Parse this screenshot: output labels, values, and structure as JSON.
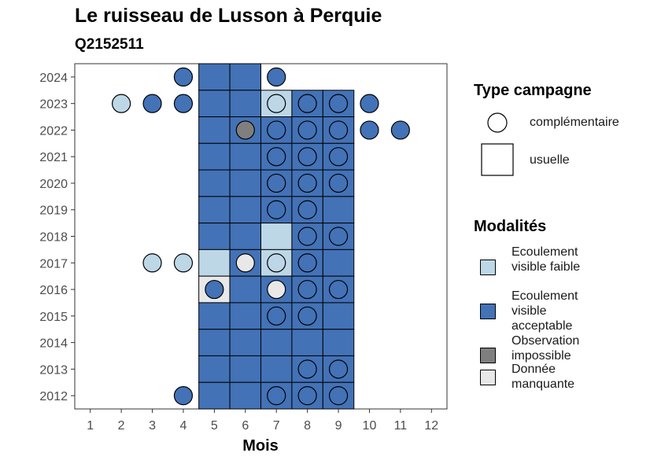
{
  "title": "Le ruisseau de Lusson à Perquie",
  "subtitle": "Q2152511",
  "colors": {
    "ecoulement_faible": "#bdd7e7",
    "ecoulement_acceptable": "#4372b7",
    "observation_impossible": "#7f7f7f",
    "donnee_manquante": "#e8e8e8"
  },
  "legend": {
    "type_title": "Type campagne",
    "type_items": [
      {
        "label": "complémentaire",
        "shape": "circle"
      },
      {
        "label": "usuelle",
        "shape": "square"
      }
    ],
    "modalites_title": "Modalités",
    "modalites_items": [
      {
        "key": "ecoulement_faible",
        "label": "Ecoulement visible faible"
      },
      {
        "key": "ecoulement_acceptable",
        "label": "Ecoulement visible acceptable"
      },
      {
        "key": "observation_impossible",
        "label": "Observation impossible"
      },
      {
        "key": "donnee_manquante",
        "label": "Donnée manquante"
      }
    ]
  },
  "chart_data": {
    "type": "scatter",
    "xlabel": "Mois",
    "ylabel": "",
    "x_ticks": [
      "1",
      "2",
      "3",
      "4",
      "5",
      "6",
      "7",
      "8",
      "9",
      "10",
      "11",
      "12"
    ],
    "y_ticks": [
      "2012",
      "2013",
      "2014",
      "2015",
      "2016",
      "2017",
      "2018",
      "2019",
      "2020",
      "2021",
      "2022",
      "2023",
      "2024"
    ],
    "xlim": [
      0.5,
      12.5
    ],
    "ylim": [
      2011.5,
      2024.5
    ],
    "usuelle": [
      {
        "year": 2024,
        "month": 5,
        "status": "ecoulement_acceptable"
      },
      {
        "year": 2024,
        "month": 6,
        "status": "ecoulement_acceptable"
      },
      {
        "year": 2023,
        "month": 5,
        "status": "ecoulement_acceptable"
      },
      {
        "year": 2023,
        "month": 6,
        "status": "ecoulement_acceptable"
      },
      {
        "year": 2023,
        "month": 7,
        "status": "ecoulement_faible"
      },
      {
        "year": 2023,
        "month": 8,
        "status": "ecoulement_acceptable"
      },
      {
        "year": 2023,
        "month": 9,
        "status": "ecoulement_acceptable"
      },
      {
        "year": 2022,
        "month": 5,
        "status": "ecoulement_acceptable"
      },
      {
        "year": 2022,
        "month": 6,
        "status": "ecoulement_acceptable"
      },
      {
        "year": 2022,
        "month": 7,
        "status": "ecoulement_acceptable"
      },
      {
        "year": 2022,
        "month": 8,
        "status": "ecoulement_acceptable"
      },
      {
        "year": 2022,
        "month": 9,
        "status": "ecoulement_acceptable"
      },
      {
        "year": 2021,
        "month": 5,
        "status": "ecoulement_acceptable"
      },
      {
        "year": 2021,
        "month": 6,
        "status": "ecoulement_acceptable"
      },
      {
        "year": 2021,
        "month": 7,
        "status": "ecoulement_acceptable"
      },
      {
        "year": 2021,
        "month": 8,
        "status": "ecoulement_acceptable"
      },
      {
        "year": 2021,
        "month": 9,
        "status": "ecoulement_acceptable"
      },
      {
        "year": 2020,
        "month": 5,
        "status": "ecoulement_acceptable"
      },
      {
        "year": 2020,
        "month": 6,
        "status": "ecoulement_acceptable"
      },
      {
        "year": 2020,
        "month": 7,
        "status": "ecoulement_acceptable"
      },
      {
        "year": 2020,
        "month": 8,
        "status": "ecoulement_acceptable"
      },
      {
        "year": 2020,
        "month": 9,
        "status": "ecoulement_acceptable"
      },
      {
        "year": 2019,
        "month": 5,
        "status": "ecoulement_acceptable"
      },
      {
        "year": 2019,
        "month": 6,
        "status": "ecoulement_acceptable"
      },
      {
        "year": 2019,
        "month": 7,
        "status": "ecoulement_acceptable"
      },
      {
        "year": 2019,
        "month": 8,
        "status": "ecoulement_acceptable"
      },
      {
        "year": 2019,
        "month": 9,
        "status": "ecoulement_acceptable"
      },
      {
        "year": 2018,
        "month": 5,
        "status": "ecoulement_acceptable"
      },
      {
        "year": 2018,
        "month": 6,
        "status": "ecoulement_acceptable"
      },
      {
        "year": 2018,
        "month": 7,
        "status": "ecoulement_faible"
      },
      {
        "year": 2018,
        "month": 8,
        "status": "ecoulement_acceptable"
      },
      {
        "year": 2018,
        "month": 9,
        "status": "ecoulement_acceptable"
      },
      {
        "year": 2017,
        "month": 5,
        "status": "ecoulement_faible"
      },
      {
        "year": 2017,
        "month": 6,
        "status": "ecoulement_acceptable"
      },
      {
        "year": 2017,
        "month": 7,
        "status": "ecoulement_faible"
      },
      {
        "year": 2017,
        "month": 8,
        "status": "ecoulement_acceptable"
      },
      {
        "year": 2017,
        "month": 9,
        "status": "ecoulement_acceptable"
      },
      {
        "year": 2016,
        "month": 5,
        "status": "donnee_manquante"
      },
      {
        "year": 2016,
        "month": 6,
        "status": "ecoulement_acceptable"
      },
      {
        "year": 2016,
        "month": 7,
        "status": "ecoulement_acceptable"
      },
      {
        "year": 2016,
        "month": 8,
        "status": "ecoulement_acceptable"
      },
      {
        "year": 2016,
        "month": 9,
        "status": "ecoulement_acceptable"
      },
      {
        "year": 2015,
        "month": 5,
        "status": "ecoulement_acceptable"
      },
      {
        "year": 2015,
        "month": 6,
        "status": "ecoulement_acceptable"
      },
      {
        "year": 2015,
        "month": 7,
        "status": "ecoulement_acceptable"
      },
      {
        "year": 2015,
        "month": 8,
        "status": "ecoulement_acceptable"
      },
      {
        "year": 2015,
        "month": 9,
        "status": "ecoulement_acceptable"
      },
      {
        "year": 2014,
        "month": 5,
        "status": "ecoulement_acceptable"
      },
      {
        "year": 2014,
        "month": 6,
        "status": "ecoulement_acceptable"
      },
      {
        "year": 2014,
        "month": 7,
        "status": "ecoulement_acceptable"
      },
      {
        "year": 2014,
        "month": 8,
        "status": "ecoulement_acceptable"
      },
      {
        "year": 2014,
        "month": 9,
        "status": "ecoulement_acceptable"
      },
      {
        "year": 2013,
        "month": 5,
        "status": "ecoulement_acceptable"
      },
      {
        "year": 2013,
        "month": 6,
        "status": "ecoulement_acceptable"
      },
      {
        "year": 2013,
        "month": 7,
        "status": "ecoulement_acceptable"
      },
      {
        "year": 2013,
        "month": 8,
        "status": "ecoulement_acceptable"
      },
      {
        "year": 2013,
        "month": 9,
        "status": "ecoulement_acceptable"
      },
      {
        "year": 2012,
        "month": 5,
        "status": "ecoulement_acceptable"
      },
      {
        "year": 2012,
        "month": 6,
        "status": "ecoulement_acceptable"
      },
      {
        "year": 2012,
        "month": 7,
        "status": "ecoulement_acceptable"
      },
      {
        "year": 2012,
        "month": 8,
        "status": "ecoulement_acceptable"
      },
      {
        "year": 2012,
        "month": 9,
        "status": "ecoulement_acceptable"
      }
    ],
    "complementaire": [
      {
        "year": 2024,
        "month": 4,
        "status": "ecoulement_acceptable"
      },
      {
        "year": 2024,
        "month": 7,
        "status": "ecoulement_acceptable"
      },
      {
        "year": 2023,
        "month": 2,
        "status": "ecoulement_faible"
      },
      {
        "year": 2023,
        "month": 3,
        "status": "ecoulement_acceptable"
      },
      {
        "year": 2023,
        "month": 4,
        "status": "ecoulement_acceptable"
      },
      {
        "year": 2023,
        "month": 7,
        "status": "ecoulement_faible"
      },
      {
        "year": 2023,
        "month": 8,
        "status": "ecoulement_acceptable"
      },
      {
        "year": 2023,
        "month": 9,
        "status": "ecoulement_acceptable"
      },
      {
        "year": 2023,
        "month": 10,
        "status": "ecoulement_acceptable"
      },
      {
        "year": 2022,
        "month": 6,
        "status": "observation_impossible"
      },
      {
        "year": 2022,
        "month": 7,
        "status": "ecoulement_acceptable"
      },
      {
        "year": 2022,
        "month": 8,
        "status": "ecoulement_acceptable"
      },
      {
        "year": 2022,
        "month": 9,
        "status": "ecoulement_acceptable"
      },
      {
        "year": 2022,
        "month": 10,
        "status": "ecoulement_acceptable"
      },
      {
        "year": 2022,
        "month": 11,
        "status": "ecoulement_acceptable"
      },
      {
        "year": 2021,
        "month": 7,
        "status": "ecoulement_acceptable"
      },
      {
        "year": 2021,
        "month": 8,
        "status": "ecoulement_acceptable"
      },
      {
        "year": 2021,
        "month": 9,
        "status": "ecoulement_acceptable"
      },
      {
        "year": 2020,
        "month": 7,
        "status": "ecoulement_acceptable"
      },
      {
        "year": 2020,
        "month": 8,
        "status": "ecoulement_acceptable"
      },
      {
        "year": 2020,
        "month": 9,
        "status": "ecoulement_acceptable"
      },
      {
        "year": 2019,
        "month": 7,
        "status": "ecoulement_acceptable"
      },
      {
        "year": 2019,
        "month": 8,
        "status": "ecoulement_acceptable"
      },
      {
        "year": 2018,
        "month": 8,
        "status": "ecoulement_acceptable"
      },
      {
        "year": 2018,
        "month": 9,
        "status": "ecoulement_acceptable"
      },
      {
        "year": 2017,
        "month": 3,
        "status": "ecoulement_faible"
      },
      {
        "year": 2017,
        "month": 4,
        "status": "ecoulement_faible"
      },
      {
        "year": 2017,
        "month": 6,
        "status": "donnee_manquante"
      },
      {
        "year": 2017,
        "month": 7,
        "status": "ecoulement_faible"
      },
      {
        "year": 2017,
        "month": 8,
        "status": "ecoulement_acceptable"
      },
      {
        "year": 2016,
        "month": 5,
        "status": "ecoulement_acceptable"
      },
      {
        "year": 2016,
        "month": 7,
        "status": "donnee_manquante"
      },
      {
        "year": 2016,
        "month": 8,
        "status": "ecoulement_acceptable"
      },
      {
        "year": 2016,
        "month": 9,
        "status": "ecoulement_acceptable"
      },
      {
        "year": 2015,
        "month": 7,
        "status": "ecoulement_acceptable"
      },
      {
        "year": 2015,
        "month": 8,
        "status": "ecoulement_acceptable"
      },
      {
        "year": 2013,
        "month": 8,
        "status": "ecoulement_acceptable"
      },
      {
        "year": 2013,
        "month": 9,
        "status": "ecoulement_acceptable"
      },
      {
        "year": 2012,
        "month": 4,
        "status": "ecoulement_acceptable"
      },
      {
        "year": 2012,
        "month": 7,
        "status": "ecoulement_acceptable"
      },
      {
        "year": 2012,
        "month": 8,
        "status": "ecoulement_acceptable"
      },
      {
        "year": 2012,
        "month": 9,
        "status": "ecoulement_acceptable"
      }
    ]
  }
}
